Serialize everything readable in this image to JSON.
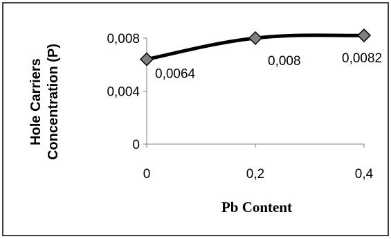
{
  "chart_data": {
    "type": "line",
    "title": "",
    "xlabel": "Pb Content",
    "ylabel_lines": [
      "Hole Carriers",
      "Concentration (P)"
    ],
    "x_ticks": [
      "0",
      "0,2",
      "0,4"
    ],
    "y_ticks": [
      "0",
      "0,004",
      "0,008"
    ],
    "xlim": [
      0,
      0.4
    ],
    "ylim": [
      0,
      0.008
    ],
    "grid": false,
    "legend": "none",
    "series": [
      {
        "x": [
          0,
          0.2,
          0.4
        ],
        "values": [
          0.0064,
          0.008,
          0.0082
        ],
        "labels": [
          "0,0064",
          "0,008",
          "0,0082"
        ],
        "color": "#000000",
        "marker": "diamond",
        "marker_color": "#7f7f7f",
        "smooth": true
      }
    ]
  }
}
